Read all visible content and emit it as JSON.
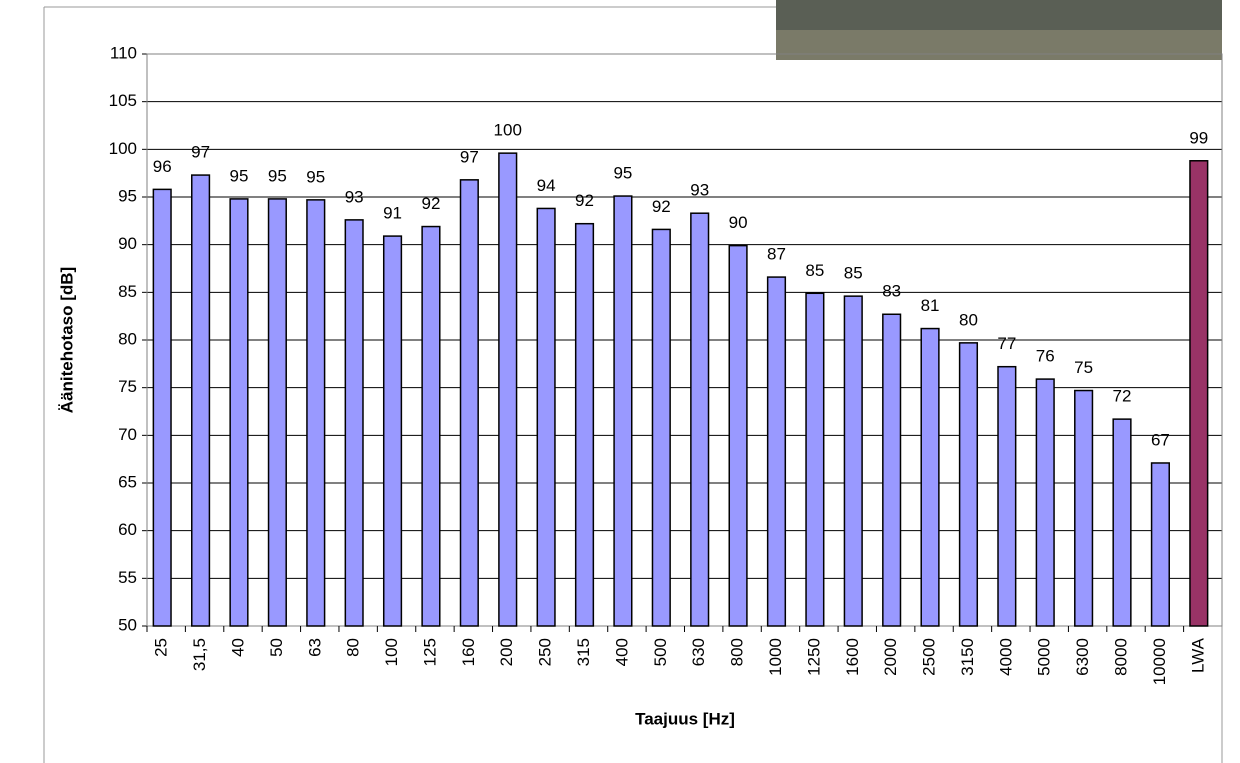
{
  "chart_data": {
    "type": "bar",
    "x_label": "Taajuus [Hz]",
    "y_label": "Äänitehotaso [dB]",
    "categories": [
      "25",
      "31,5",
      "40",
      "50",
      "63",
      "80",
      "100",
      "125",
      "160",
      "200",
      "250",
      "315",
      "400",
      "500",
      "630",
      "800",
      "1000",
      "1250",
      "1600",
      "2000",
      "2500",
      "3150",
      "4000",
      "5000",
      "6300",
      "8000",
      "10000",
      "LWA"
    ],
    "values": [
      95.8,
      97.3,
      94.8,
      94.8,
      94.7,
      92.6,
      90.9,
      91.9,
      96.8,
      99.6,
      93.8,
      92.2,
      95.1,
      91.6,
      93.3,
      89.9,
      86.6,
      84.9,
      84.6,
      82.7,
      81.2,
      79.7,
      77.2,
      75.9,
      74.7,
      71.7,
      67.1,
      98.8
    ],
    "value_labels": [
      "96",
      "97",
      "95",
      "95",
      "95",
      "93",
      "91",
      "92",
      "97",
      "100",
      "94",
      "92",
      "95",
      "92",
      "93",
      "90",
      "87",
      "85",
      "85",
      "83",
      "81",
      "80",
      "77",
      "76",
      "75",
      "72",
      "67",
      "99"
    ],
    "colors": [
      "#9999ff",
      "#9999ff",
      "#9999ff",
      "#9999ff",
      "#9999ff",
      "#9999ff",
      "#9999ff",
      "#9999ff",
      "#9999ff",
      "#9999ff",
      "#9999ff",
      "#9999ff",
      "#9999ff",
      "#9999ff",
      "#9999ff",
      "#9999ff",
      "#9999ff",
      "#9999ff",
      "#9999ff",
      "#9999ff",
      "#9999ff",
      "#9999ff",
      "#9999ff",
      "#9999ff",
      "#9999ff",
      "#9999ff",
      "#9999ff",
      "#993366"
    ],
    "ylim": [
      50,
      110
    ],
    "yticks": [
      50,
      55,
      60,
      65,
      70,
      75,
      80,
      85,
      90,
      95,
      100,
      105,
      110
    ],
    "grid": true
  }
}
